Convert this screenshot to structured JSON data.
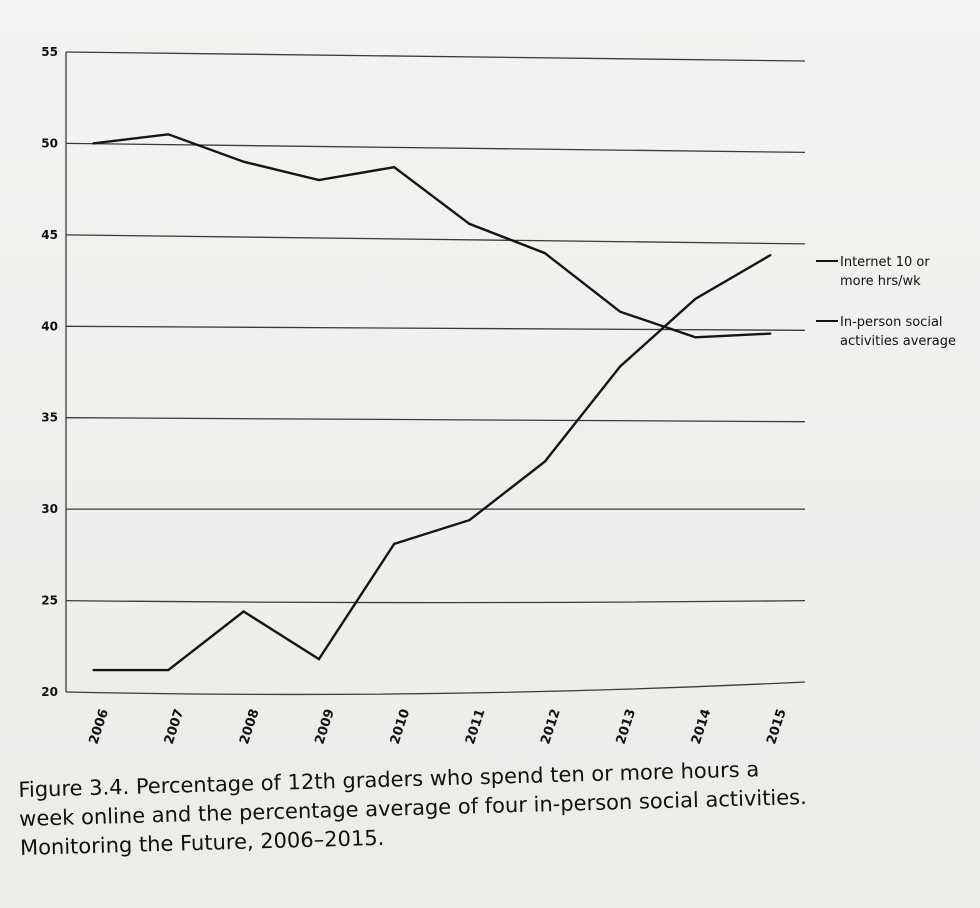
{
  "chart_data": {
    "type": "line",
    "title": "",
    "xlabel": "",
    "ylabel": "",
    "ylim": [
      20,
      55
    ],
    "yticks": [
      20,
      25,
      30,
      35,
      40,
      45,
      50,
      55
    ],
    "categories": [
      "2006",
      "2007",
      "2008",
      "2009",
      "2010",
      "2011",
      "2012",
      "2013",
      "2014",
      "2015"
    ],
    "grid": true,
    "legend_position": "right",
    "series": [
      {
        "name": "In-person social activities average",
        "legend_lines": [
          "In-person social",
          "activities average"
        ],
        "values": [
          50.0,
          50.5,
          49.0,
          48.0,
          48.7,
          45.6,
          44.0,
          40.8,
          39.4,
          39.6
        ]
      },
      {
        "name": "Internet 10 or more hrs/wk",
        "legend_lines": [
          "Internet 10 or",
          "more hrs/wk"
        ],
        "values": [
          21.2,
          21.2,
          24.4,
          21.8,
          28.1,
          29.4,
          32.6,
          37.8,
          41.5,
          43.9
        ]
      }
    ]
  },
  "caption": {
    "lines": [
      "Figure 3.4. Percentage of 12th graders who spend ten or more hours a",
      "week online and the percentage average of four in-person social activities.",
      "Monitoring the Future, 2006–2015."
    ]
  },
  "colors": {
    "line": "#151515",
    "grid": "#3a3a3a",
    "text": "#111111",
    "background": "#efeeeb"
  }
}
